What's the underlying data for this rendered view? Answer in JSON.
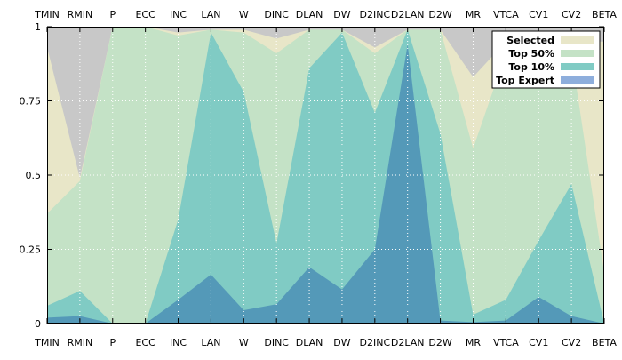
{
  "chart_data": {
    "type": "area",
    "categories": [
      "TMIN",
      "RMIN",
      "P",
      "ECC",
      "INC",
      "LAN",
      "W",
      "DINC",
      "DLAN",
      "DW",
      "D2INC",
      "D2LAN",
      "D2W",
      "MR",
      "VTCA",
      "CV1",
      "CV2",
      "BETA"
    ],
    "ylim": [
      0,
      1
    ],
    "yticks": [
      "0",
      "0.25",
      "0.5",
      "0.75",
      "1"
    ],
    "ytick_values": [
      0,
      0.25,
      0.5,
      0.75,
      1
    ],
    "grid": true,
    "legend_position": "top-right",
    "background_color": "#c8c8c8",
    "series": [
      {
        "name": "Selected",
        "color": "#e8e6c8",
        "values": [
          0.93,
          0.49,
          1.0,
          1.0,
          0.98,
          0.99,
          0.99,
          0.96,
          0.99,
          0.99,
          0.93,
          0.99,
          0.99,
          0.83,
          0.95,
          0.95,
          0.95,
          0.95
        ]
      },
      {
        "name": "Top 50%",
        "color": "#c4e2c6",
        "values": [
          0.37,
          0.48,
          1.0,
          1.0,
          0.97,
          0.99,
          0.98,
          0.91,
          0.99,
          0.99,
          0.91,
          0.99,
          0.99,
          0.59,
          0.91,
          0.91,
          0.91,
          0.17
        ]
      },
      {
        "name": "Top 10%",
        "color": "#80cbc4",
        "values": [
          0.06,
          0.11,
          0.0,
          0.0,
          0.35,
          0.98,
          0.78,
          0.27,
          0.86,
          0.98,
          0.71,
          0.99,
          0.64,
          0.03,
          0.08,
          0.28,
          0.47,
          0.0
        ]
      },
      {
        "name": "Top Expert",
        "color": "#5499b8",
        "legend_color": "#8eaedc",
        "values": [
          0.02,
          0.025,
          0.0,
          0.0,
          0.08,
          0.165,
          0.045,
          0.065,
          0.19,
          0.115,
          0.25,
          0.94,
          0.01,
          0.005,
          0.01,
          0.09,
          0.025,
          0.0
        ]
      }
    ]
  }
}
